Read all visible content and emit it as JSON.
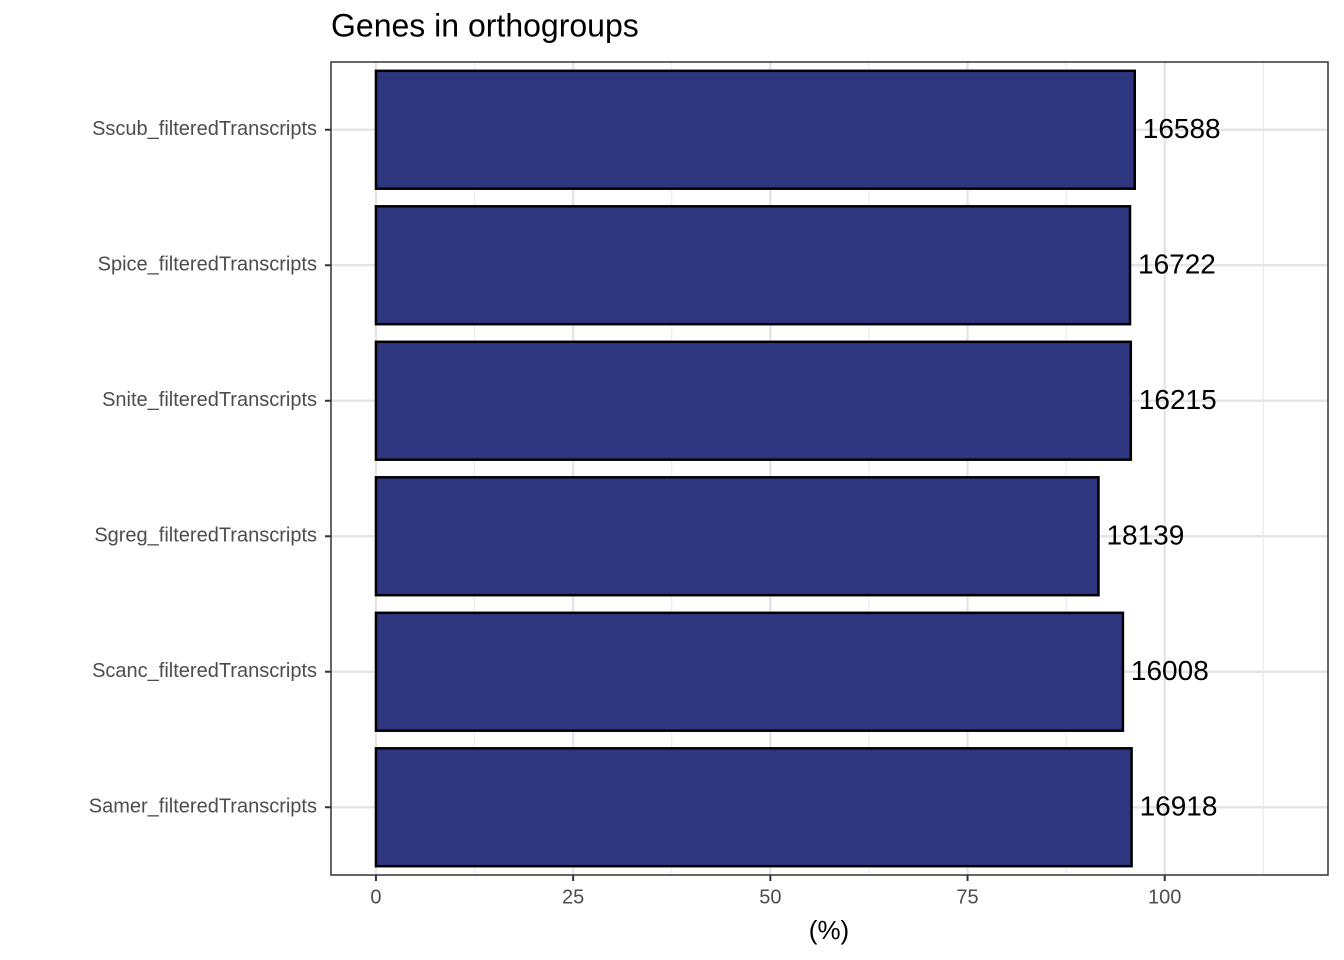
{
  "chart_data": {
    "type": "barh",
    "title": "Genes in orthogroups",
    "x_label": "(%)",
    "categories": [
      "Sscub_filteredTranscripts",
      "Spice_filteredTranscripts",
      "Snite_filteredTranscripts",
      "Sgreg_filteredTranscripts",
      "Scanc_filteredTranscripts",
      "Samer_filteredTranscripts"
    ],
    "values": [
      96.2,
      95.6,
      95.7,
      91.6,
      94.7,
      95.8
    ],
    "bar_labels": [
      "16588",
      "16722",
      "16215",
      "18139",
      "16008",
      "16918"
    ],
    "color": "#2e3680",
    "xlim": [
      -5.7,
      120.7
    ],
    "xticks": [
      0,
      25,
      50,
      75,
      100
    ],
    "x_minor_ticks": [
      12.5,
      37.5,
      62.5,
      87.5,
      112.5
    ],
    "grid": true
  }
}
